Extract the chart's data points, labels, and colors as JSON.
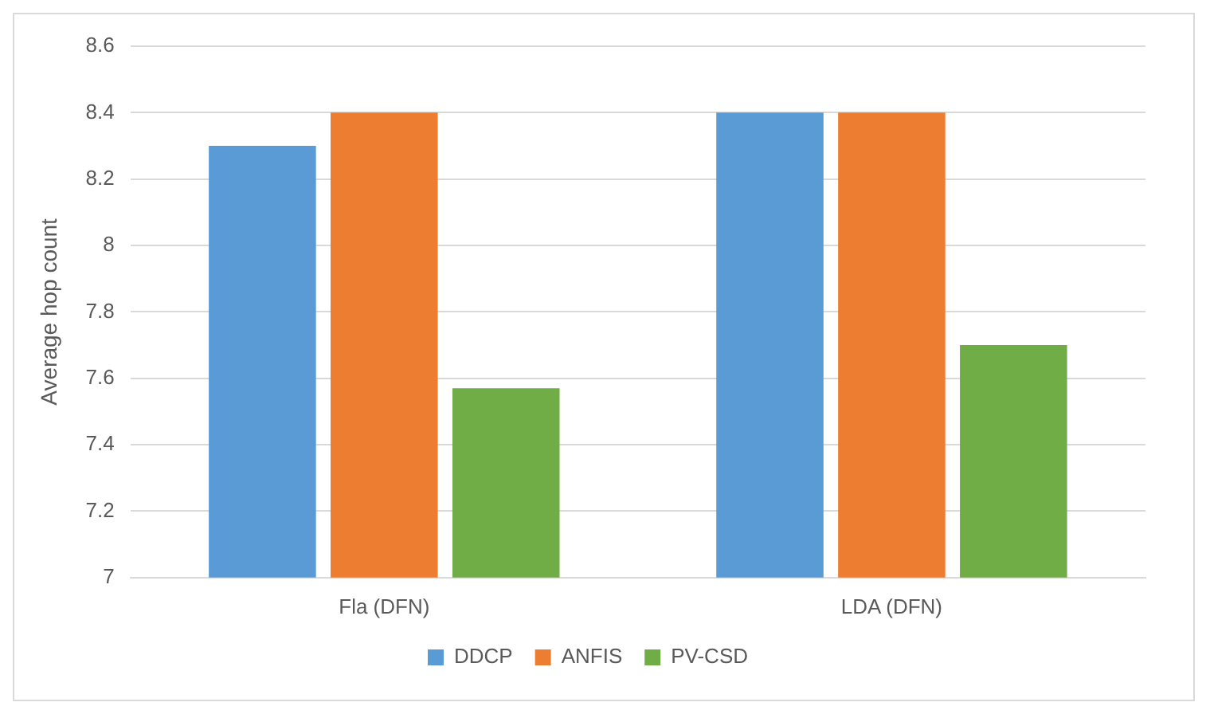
{
  "chart_data": {
    "type": "bar",
    "ylabel": "Average hop count",
    "categories": [
      "Fla (DFN)",
      "LDA (DFN)"
    ],
    "series": [
      {
        "name": "DDCP",
        "color": "#5b9bd5",
        "values": [
          8.3,
          8.4
        ]
      },
      {
        "name": "ANFIS",
        "color": "#ed7d31",
        "values": [
          8.4,
          8.4
        ]
      },
      {
        "name": "PV-CSD",
        "color": "#70ad47",
        "values": [
          7.57,
          7.7
        ]
      }
    ],
    "ylim": [
      7,
      8.6
    ],
    "yticks": [
      7,
      7.2,
      7.4,
      7.6,
      7.8,
      8,
      8.2,
      8.4,
      8.6
    ],
    "grid": "y",
    "legend": "bottom"
  }
}
